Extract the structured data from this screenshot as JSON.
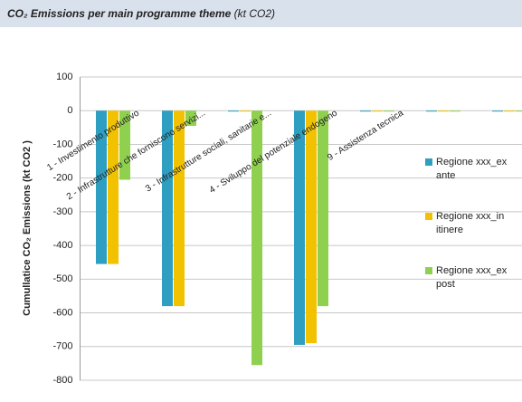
{
  "chart_data": {
    "type": "bar",
    "title": "CO₂ Emissions per main programme theme",
    "title_unit": "(kt CO2)",
    "y_label": "Cumullatice CO₂ Emissions  (kt CO2 )",
    "categories": [
      "1 - Investimento produttivo",
      "2 - Infrastrutture che forniscono servizi...",
      "3 - Infrastrutture sociali, sanitarie e...",
      "4 - Sviluppo del potenziale endogeno",
      "9 - Assistenza tecnica",
      null,
      null
    ],
    "series": [
      {
        "name": "Regione xxx_ex ante",
        "color": "#2e9fc0",
        "values": [
          -455,
          -580,
          0,
          -695,
          0,
          0,
          0
        ]
      },
      {
        "name": "Regione xxx_in itinere",
        "color": "#f2c200",
        "values": [
          -455,
          -580,
          0,
          -690,
          0,
          0,
          0
        ]
      },
      {
        "name": "Regione xxx_ex post",
        "color": "#8fd14f",
        "values": [
          -205,
          -45,
          -755,
          -580,
          0,
          0,
          0
        ]
      }
    ],
    "ylim": [
      -800,
      100
    ],
    "yticks": [
      100,
      0,
      -100,
      -200,
      -300,
      -400,
      -500,
      -600,
      -700,
      -800
    ],
    "grid": true,
    "legend": "right"
  }
}
